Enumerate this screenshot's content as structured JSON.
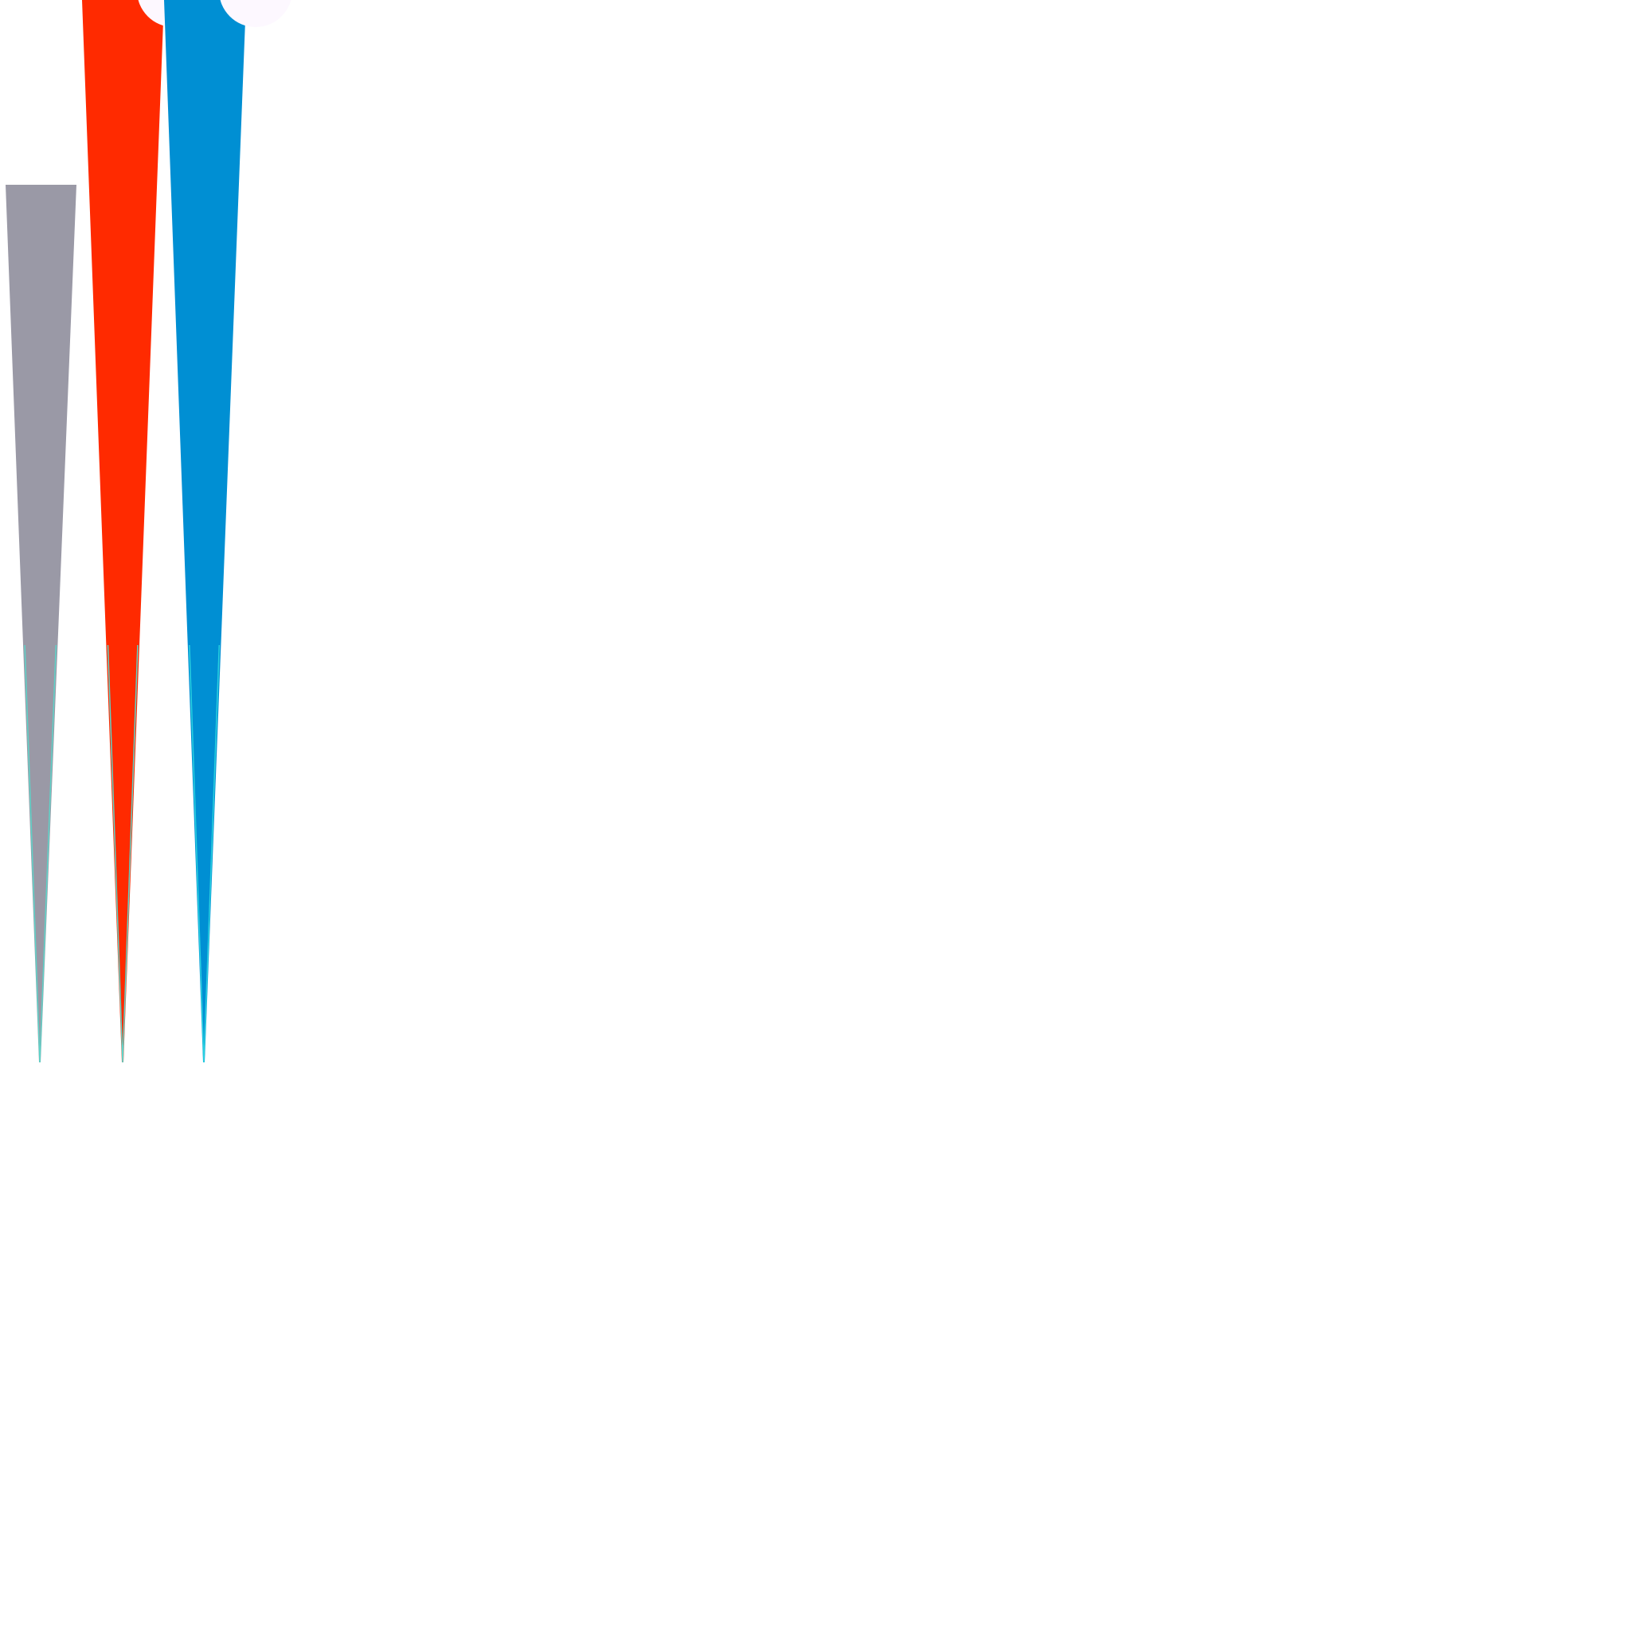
{
  "page": {
    "background": "#ffffff"
  },
  "shapes": [
    {
      "kind": "tapered-wedge",
      "color": "#9a99a6",
      "accent": "#5fd3c8",
      "notched_top": false
    },
    {
      "kind": "tapered-wedge",
      "color": "#ff2a00",
      "accent": "#5fd3c8",
      "notched_top": true
    },
    {
      "kind": "tapered-wedge",
      "color": "#008fd3",
      "accent": "#29d0e0",
      "notched_top": true
    }
  ]
}
